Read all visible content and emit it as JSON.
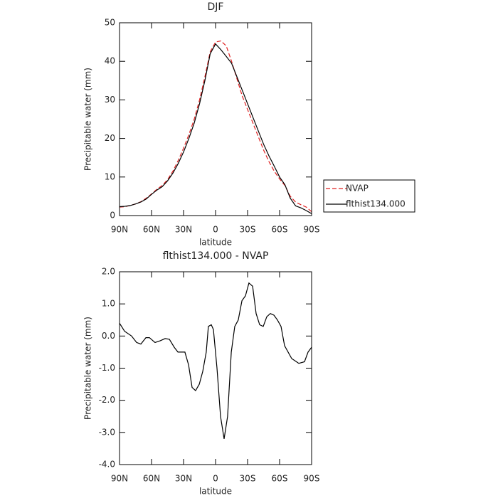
{
  "chart_data": [
    {
      "type": "line",
      "title": "DJF",
      "xlabel": "latitude",
      "ylabel": "Precipitable water (mm)",
      "x": [
        90,
        85,
        80,
        75,
        70,
        65,
        60,
        55,
        50,
        45,
        40,
        35,
        30,
        25,
        20,
        15,
        10,
        5,
        0,
        -5,
        -10,
        -15,
        -20,
        -25,
        -30,
        -35,
        -40,
        -45,
        -50,
        -55,
        -60,
        -65,
        -70,
        -75,
        -80,
        -85,
        -90
      ],
      "series": [
        {
          "name": "NVAP",
          "color": "#e02020",
          "style": "dashed",
          "values": [
            2.2,
            2.3,
            2.6,
            3.0,
            3.6,
            4.5,
            5.6,
            6.8,
            7.8,
            9.3,
            11.5,
            14.3,
            17.5,
            21,
            25,
            30,
            36,
            42.5,
            45,
            45.3,
            44,
            40,
            35.5,
            31,
            27.5,
            24,
            20.5,
            17,
            14,
            11.5,
            9.5,
            7.8,
            5,
            3.5,
            2.8,
            2.2,
            1
          ]
        },
        {
          "name": "flthist134.000",
          "color": "#000000",
          "style": "solid",
          "values": [
            2.3,
            2.4,
            2.6,
            3.0,
            3.5,
            4.3,
            5.5,
            6.6,
            7.5,
            9,
            11,
            13.5,
            16.5,
            20,
            24,
            29,
            35,
            42,
            44.5,
            43,
            41.3,
            39.5,
            36,
            32.5,
            29,
            25.5,
            22,
            18.5,
            15.5,
            12.8,
            10,
            8,
            4.5,
            2.5,
            2,
            1.3,
            0.5
          ]
        }
      ],
      "xlim": [
        90,
        -90
      ],
      "xticks": [
        {
          "value": 90,
          "label": "90N"
        },
        {
          "value": 60,
          "label": "60N"
        },
        {
          "value": 30,
          "label": "30N"
        },
        0,
        {
          "value": -30,
          "label": "30S"
        },
        {
          "value": -60,
          "label": "60S"
        },
        {
          "value": -90,
          "label": "90S"
        }
      ],
      "ylim": [
        0,
        50
      ],
      "yticks": [
        0,
        10,
        20,
        30,
        40,
        50
      ],
      "legend": "right"
    },
    {
      "type": "line",
      "title": "flthist134.000 - NVAP",
      "xlabel": "latitude",
      "ylabel": "Precipitable water (mm)",
      "x": [
        90,
        85.3,
        78.7,
        74,
        70,
        65.3,
        62,
        56.7,
        52,
        47.3,
        43.3,
        38.7,
        35.3,
        32,
        28.7,
        25.3,
        22,
        18.7,
        15.3,
        12,
        8.7,
        6.7,
        4,
        2,
        -1.3,
        -4.7,
        -8,
        -11.3,
        -14.7,
        -18,
        -21.3,
        -24.7,
        -28,
        -31.3,
        -34.7,
        -38,
        -41.3,
        -44.7,
        -48,
        -51.3,
        -54.7,
        -58,
        -61.3,
        -64.7,
        -71.3,
        -78,
        -83.3,
        -86.7,
        -90
      ],
      "series": [
        {
          "color": "#000000",
          "style": "solid",
          "values": [
            0.4,
            0.15,
            0,
            -0.2,
            -0.25,
            -0.05,
            -0.05,
            -0.2,
            -0.15,
            -0.08,
            -0.1,
            -0.35,
            -0.5,
            -0.5,
            -0.5,
            -0.9,
            -1.6,
            -1.7,
            -1.5,
            -1.1,
            -0.5,
            0.3,
            0.35,
            0.2,
            -1,
            -2.5,
            -3.2,
            -2.5,
            -0.5,
            0.3,
            0.5,
            1.1,
            1.25,
            1.65,
            1.55,
            0.7,
            0.35,
            0.3,
            0.6,
            0.7,
            0.65,
            0.5,
            0.3,
            -0.3,
            -0.7,
            -0.85,
            -0.8,
            -0.5,
            -0.35
          ]
        }
      ],
      "xlim": [
        90,
        -90
      ],
      "xticks": [
        {
          "value": 90,
          "label": "90N"
        },
        {
          "value": 60,
          "label": "60N"
        },
        {
          "value": 30,
          "label": "30N"
        },
        0,
        {
          "value": -30,
          "label": "30S"
        },
        {
          "value": -60,
          "label": "60S"
        },
        {
          "value": -90,
          "label": "90S"
        }
      ],
      "ylim": [
        -4,
        2
      ],
      "yticks": [
        {
          "value": -4,
          "label": "-4.0"
        },
        {
          "value": -3,
          "label": "-3.0"
        },
        {
          "value": -2,
          "label": "-2.0"
        },
        {
          "value": -1,
          "label": "-1.0"
        },
        {
          "value": 0,
          "label": "0.0"
        },
        {
          "value": 1,
          "label": "1.0"
        },
        {
          "value": 2,
          "label": "2.0"
        }
      ]
    }
  ]
}
